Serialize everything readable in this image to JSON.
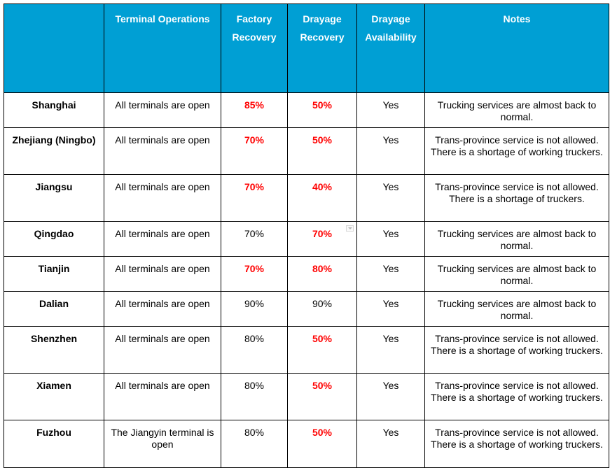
{
  "table": {
    "headers": [
      "",
      "Terminal Operations",
      "Factory Recovery",
      "Drayage Recovery",
      "Drayage Availability",
      "Notes"
    ],
    "rows": [
      {
        "region": "Shanghai",
        "terminal": "All terminals are open",
        "factory": "85%",
        "factory_red": true,
        "drayage": "50%",
        "drayage_red": true,
        "availability": "Yes",
        "notes": "Trucking services are almost back to normal."
      },
      {
        "region": "Zhejiang (Ningbo)",
        "terminal": "All terminals are open",
        "factory": "70%",
        "factory_red": true,
        "drayage": "50%",
        "drayage_red": true,
        "availability": "Yes",
        "notes": "Trans-province service is not allowed. There is a shortage of working truckers."
      },
      {
        "region": "Jiangsu",
        "terminal": "All terminals are open",
        "factory": "70%",
        "factory_red": true,
        "drayage": "40%",
        "drayage_red": true,
        "availability": "Yes",
        "notes": "Trans-province service is not allowed. There is a shortage of truckers."
      },
      {
        "region": "Qingdao",
        "terminal": "All terminals are open",
        "factory": "70%",
        "factory_red": false,
        "drayage": "70%",
        "drayage_red": true,
        "availability": "Yes",
        "notes": "Trucking services are almost back to normal."
      },
      {
        "region": "Tianjin",
        "terminal": "All terminals are open",
        "factory": "70%",
        "factory_red": true,
        "drayage": "80%",
        "drayage_red": true,
        "availability": "Yes",
        "notes": "Trucking services are almost back to normal."
      },
      {
        "region": "Dalian",
        "terminal": "All terminals are open",
        "factory": "90%",
        "factory_red": false,
        "drayage": "90%",
        "drayage_red": false,
        "availability": "Yes",
        "notes": "Trucking services are almost back to normal."
      },
      {
        "region": "Shenzhen",
        "terminal": "All terminals are open",
        "factory": "80%",
        "factory_red": false,
        "drayage": "50%",
        "drayage_red": true,
        "availability": "Yes",
        "notes": "Trans-province service is not allowed. There is a shortage of working truckers."
      },
      {
        "region": "Xiamen",
        "terminal": "All terminals are open",
        "factory": "80%",
        "factory_red": false,
        "drayage": "50%",
        "drayage_red": true,
        "availability": "Yes",
        "notes": "Trans-province service is not allowed. There is a shortage of working truckers."
      },
      {
        "region": "Fuzhou",
        "terminal": "The Jiangyin terminal is open",
        "factory": "80%",
        "factory_red": false,
        "drayage": "50%",
        "drayage_red": true,
        "availability": "Yes",
        "notes": "Trans-province service is not allowed. There is a shortage of working truckers."
      }
    ]
  },
  "colors": {
    "header_bg": "#009fd4",
    "header_text": "#ffffff",
    "highlight": "#ff0000",
    "border": "#000000"
  },
  "icons": {
    "dropdown_marker": "dropdown-marker-icon"
  }
}
